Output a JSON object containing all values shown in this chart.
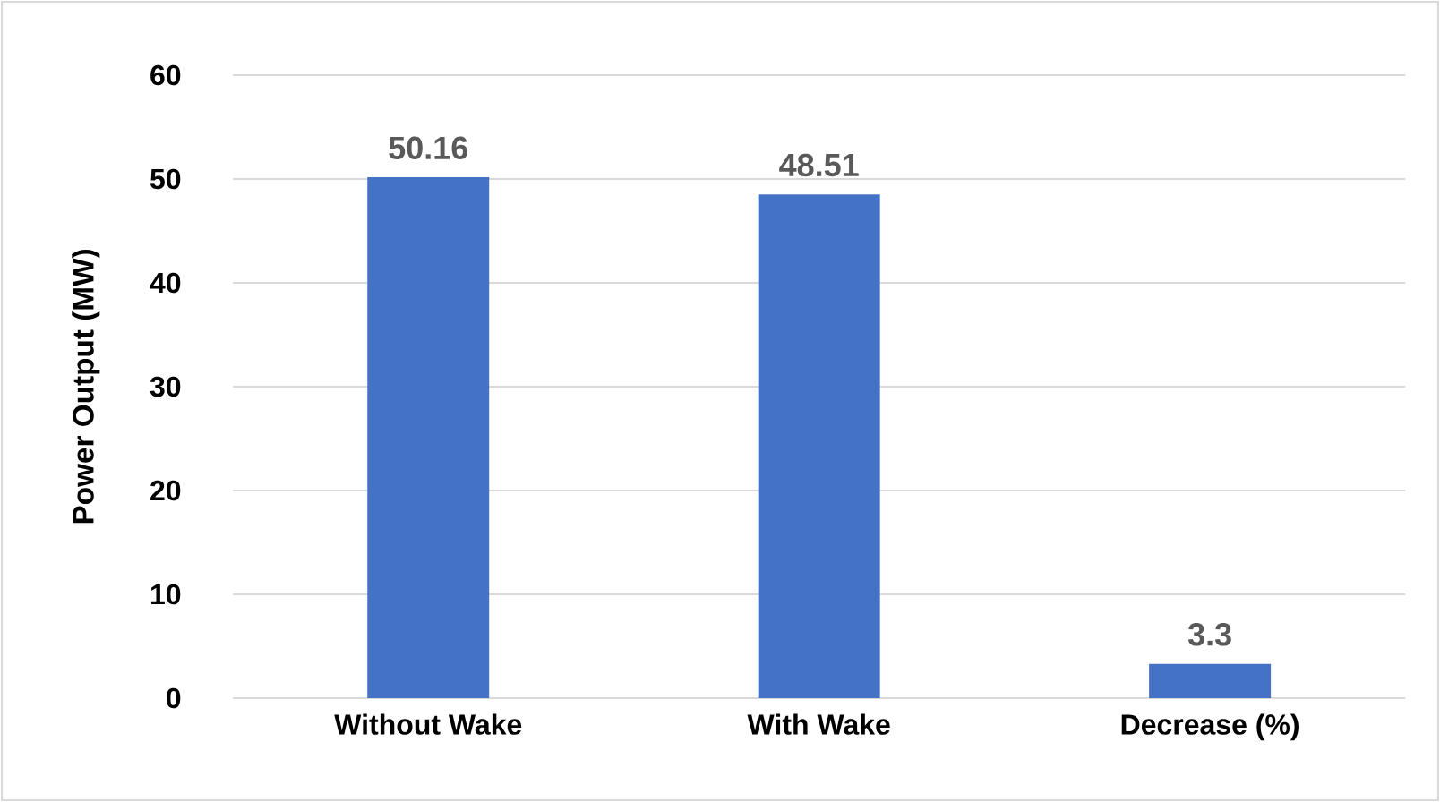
{
  "chart_data": {
    "type": "bar",
    "ylabel": "Power Output (MW)",
    "categories": [
      "Without Wake",
      "With Wake",
      "Decrease (%)"
    ],
    "values": [
      50.16,
      48.51,
      3.3
    ],
    "color": "#4472c4",
    "ylim": [
      0,
      60
    ],
    "yticks": [
      0,
      10,
      20,
      30,
      40,
      50,
      60
    ],
    "grid": "y",
    "data_labels": true
  }
}
